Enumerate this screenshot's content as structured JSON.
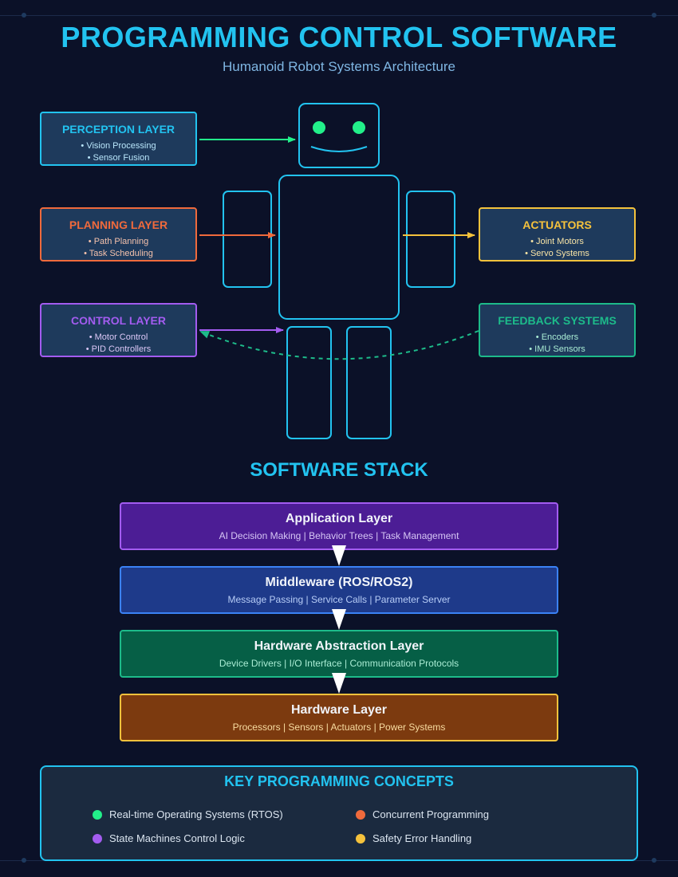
{
  "header": {
    "title": "PROGRAMMING CONTROL SOFTWARE",
    "subtitle": "Humanoid Robot Systems Architecture"
  },
  "layers": {
    "perception": {
      "title": "PERCEPTION LAYER",
      "items": [
        "• Vision Processing",
        "• Sensor Fusion"
      ],
      "color": "#22c3f0",
      "text_color": "#b9e6fb"
    },
    "planning": {
      "title": "PLANNING LAYER",
      "items": [
        "• Path Planning",
        "• Task Scheduling"
      ],
      "color": "#f06a3c",
      "text_color": "#f5c2ac"
    },
    "control": {
      "title": "CONTROL LAYER",
      "items": [
        "• Motor Control",
        "• PID Controllers"
      ],
      "color": "#a35cf0",
      "text_color": "#dcc8f7"
    },
    "actuators": {
      "title": "ACTUATORS",
      "items": [
        "• Joint Motors",
        "• Servo Systems"
      ],
      "color": "#f5c23c",
      "text_color": "#f8e4a6"
    },
    "feedback": {
      "title": "FEEDBACK SYSTEMS",
      "items": [
        "• Encoders",
        "• IMU Sensors"
      ],
      "color": "#1dbb8a",
      "text_color": "#a9ecd4"
    }
  },
  "robot": {
    "outline_color": "#22c3f0",
    "eye_color": "#22f08a"
  },
  "stack": {
    "title": "SOFTWARE STACK",
    "layers": [
      {
        "title": "Application Layer",
        "desc": "AI Decision Making | Behavior Trees | Task Management",
        "bg": "#4c1d95",
        "border": "#a35cf0",
        "desc_color": "#d6c6f5"
      },
      {
        "title": "Middleware (ROS/ROS2)",
        "desc": "Message Passing | Service Calls | Parameter Server",
        "bg": "#1e3a8a",
        "border": "#3b82f6",
        "desc_color": "#b7cdf7"
      },
      {
        "title": "Hardware Abstraction Layer",
        "desc": "Device Drivers | I/O Interface | Communication Protocols",
        "bg": "#065f46",
        "border": "#1dbb8a",
        "desc_color": "#a9ecd4"
      },
      {
        "title": "Hardware Layer",
        "desc": "Processors | Sensors | Actuators | Power Systems",
        "bg": "#7c3a0f",
        "border": "#f5c23c",
        "desc_color": "#f8dca0"
      }
    ]
  },
  "concepts": {
    "title": "KEY PROGRAMMING CONCEPTS",
    "items": [
      {
        "label": "Real-time Operating Systems (RTOS)",
        "color": "#22f08a"
      },
      {
        "label": "Concurrent Programming",
        "color": "#f06a3c"
      },
      {
        "label": "State Machines Control Logic",
        "color": "#a35cf0"
      },
      {
        "label": "Safety Error Handling",
        "color": "#f5c23c"
      }
    ]
  }
}
